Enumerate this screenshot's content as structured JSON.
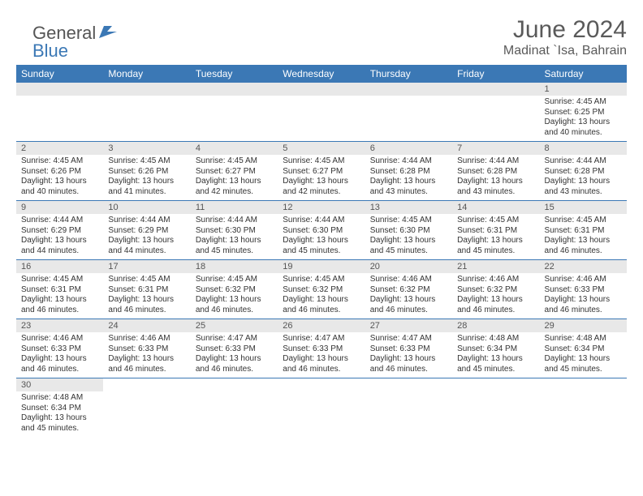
{
  "brand": {
    "general": "General",
    "blue": "Blue"
  },
  "title": "June 2024",
  "location": "Madinat `Isa, Bahrain",
  "colors": {
    "header_bg": "#3b78b5",
    "header_text": "#ffffff",
    "daynum_bg": "#e8e8e8",
    "text": "#333333",
    "border": "#3b78b5"
  },
  "fonts": {
    "title_size": 30,
    "location_size": 16,
    "dayhdr_size": 12,
    "body_size": 10
  },
  "day_headers": [
    "Sunday",
    "Monday",
    "Tuesday",
    "Wednesday",
    "Thursday",
    "Friday",
    "Saturday"
  ],
  "weeks": [
    [
      null,
      null,
      null,
      null,
      null,
      null,
      {
        "n": "1",
        "sr": "Sunrise: 4:45 AM",
        "ss": "Sunset: 6:25 PM",
        "dl1": "Daylight: 13 hours",
        "dl2": "and 40 minutes."
      }
    ],
    [
      {
        "n": "2",
        "sr": "Sunrise: 4:45 AM",
        "ss": "Sunset: 6:26 PM",
        "dl1": "Daylight: 13 hours",
        "dl2": "and 40 minutes."
      },
      {
        "n": "3",
        "sr": "Sunrise: 4:45 AM",
        "ss": "Sunset: 6:26 PM",
        "dl1": "Daylight: 13 hours",
        "dl2": "and 41 minutes."
      },
      {
        "n": "4",
        "sr": "Sunrise: 4:45 AM",
        "ss": "Sunset: 6:27 PM",
        "dl1": "Daylight: 13 hours",
        "dl2": "and 42 minutes."
      },
      {
        "n": "5",
        "sr": "Sunrise: 4:45 AM",
        "ss": "Sunset: 6:27 PM",
        "dl1": "Daylight: 13 hours",
        "dl2": "and 42 minutes."
      },
      {
        "n": "6",
        "sr": "Sunrise: 4:44 AM",
        "ss": "Sunset: 6:28 PM",
        "dl1": "Daylight: 13 hours",
        "dl2": "and 43 minutes."
      },
      {
        "n": "7",
        "sr": "Sunrise: 4:44 AM",
        "ss": "Sunset: 6:28 PM",
        "dl1": "Daylight: 13 hours",
        "dl2": "and 43 minutes."
      },
      {
        "n": "8",
        "sr": "Sunrise: 4:44 AM",
        "ss": "Sunset: 6:28 PM",
        "dl1": "Daylight: 13 hours",
        "dl2": "and 43 minutes."
      }
    ],
    [
      {
        "n": "9",
        "sr": "Sunrise: 4:44 AM",
        "ss": "Sunset: 6:29 PM",
        "dl1": "Daylight: 13 hours",
        "dl2": "and 44 minutes."
      },
      {
        "n": "10",
        "sr": "Sunrise: 4:44 AM",
        "ss": "Sunset: 6:29 PM",
        "dl1": "Daylight: 13 hours",
        "dl2": "and 44 minutes."
      },
      {
        "n": "11",
        "sr": "Sunrise: 4:44 AM",
        "ss": "Sunset: 6:30 PM",
        "dl1": "Daylight: 13 hours",
        "dl2": "and 45 minutes."
      },
      {
        "n": "12",
        "sr": "Sunrise: 4:44 AM",
        "ss": "Sunset: 6:30 PM",
        "dl1": "Daylight: 13 hours",
        "dl2": "and 45 minutes."
      },
      {
        "n": "13",
        "sr": "Sunrise: 4:45 AM",
        "ss": "Sunset: 6:30 PM",
        "dl1": "Daylight: 13 hours",
        "dl2": "and 45 minutes."
      },
      {
        "n": "14",
        "sr": "Sunrise: 4:45 AM",
        "ss": "Sunset: 6:31 PM",
        "dl1": "Daylight: 13 hours",
        "dl2": "and 45 minutes."
      },
      {
        "n": "15",
        "sr": "Sunrise: 4:45 AM",
        "ss": "Sunset: 6:31 PM",
        "dl1": "Daylight: 13 hours",
        "dl2": "and 46 minutes."
      }
    ],
    [
      {
        "n": "16",
        "sr": "Sunrise: 4:45 AM",
        "ss": "Sunset: 6:31 PM",
        "dl1": "Daylight: 13 hours",
        "dl2": "and 46 minutes."
      },
      {
        "n": "17",
        "sr": "Sunrise: 4:45 AM",
        "ss": "Sunset: 6:31 PM",
        "dl1": "Daylight: 13 hours",
        "dl2": "and 46 minutes."
      },
      {
        "n": "18",
        "sr": "Sunrise: 4:45 AM",
        "ss": "Sunset: 6:32 PM",
        "dl1": "Daylight: 13 hours",
        "dl2": "and 46 minutes."
      },
      {
        "n": "19",
        "sr": "Sunrise: 4:45 AM",
        "ss": "Sunset: 6:32 PM",
        "dl1": "Daylight: 13 hours",
        "dl2": "and 46 minutes."
      },
      {
        "n": "20",
        "sr": "Sunrise: 4:46 AM",
        "ss": "Sunset: 6:32 PM",
        "dl1": "Daylight: 13 hours",
        "dl2": "and 46 minutes."
      },
      {
        "n": "21",
        "sr": "Sunrise: 4:46 AM",
        "ss": "Sunset: 6:32 PM",
        "dl1": "Daylight: 13 hours",
        "dl2": "and 46 minutes."
      },
      {
        "n": "22",
        "sr": "Sunrise: 4:46 AM",
        "ss": "Sunset: 6:33 PM",
        "dl1": "Daylight: 13 hours",
        "dl2": "and 46 minutes."
      }
    ],
    [
      {
        "n": "23",
        "sr": "Sunrise: 4:46 AM",
        "ss": "Sunset: 6:33 PM",
        "dl1": "Daylight: 13 hours",
        "dl2": "and 46 minutes."
      },
      {
        "n": "24",
        "sr": "Sunrise: 4:46 AM",
        "ss": "Sunset: 6:33 PM",
        "dl1": "Daylight: 13 hours",
        "dl2": "and 46 minutes."
      },
      {
        "n": "25",
        "sr": "Sunrise: 4:47 AM",
        "ss": "Sunset: 6:33 PM",
        "dl1": "Daylight: 13 hours",
        "dl2": "and 46 minutes."
      },
      {
        "n": "26",
        "sr": "Sunrise: 4:47 AM",
        "ss": "Sunset: 6:33 PM",
        "dl1": "Daylight: 13 hours",
        "dl2": "and 46 minutes."
      },
      {
        "n": "27",
        "sr": "Sunrise: 4:47 AM",
        "ss": "Sunset: 6:33 PM",
        "dl1": "Daylight: 13 hours",
        "dl2": "and 46 minutes."
      },
      {
        "n": "28",
        "sr": "Sunrise: 4:48 AM",
        "ss": "Sunset: 6:34 PM",
        "dl1": "Daylight: 13 hours",
        "dl2": "and 45 minutes."
      },
      {
        "n": "29",
        "sr": "Sunrise: 4:48 AM",
        "ss": "Sunset: 6:34 PM",
        "dl1": "Daylight: 13 hours",
        "dl2": "and 45 minutes."
      }
    ],
    [
      {
        "n": "30",
        "sr": "Sunrise: 4:48 AM",
        "ss": "Sunset: 6:34 PM",
        "dl1": "Daylight: 13 hours",
        "dl2": "and 45 minutes."
      },
      null,
      null,
      null,
      null,
      null,
      null
    ]
  ]
}
